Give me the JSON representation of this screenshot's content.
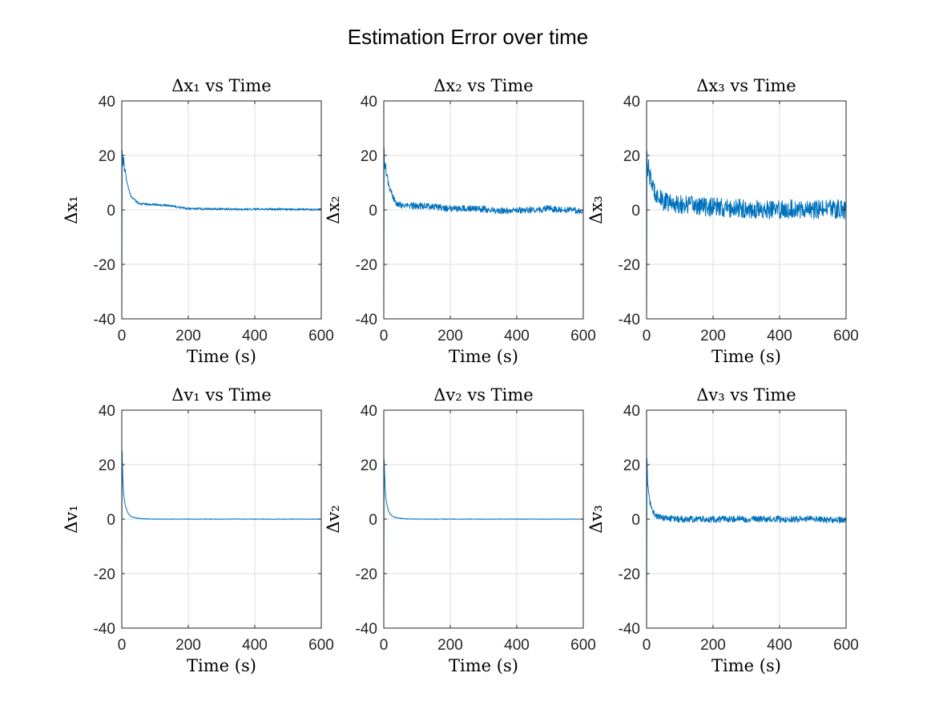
{
  "figure": {
    "title": "Estimation Error over time"
  },
  "colors": {
    "series": "#0072bd",
    "axis": "#262626",
    "grid": "#dfdfdf"
  },
  "chart_data": [
    {
      "type": "line",
      "title": "Δx₁ vs Time",
      "xlabel": "Time (s)",
      "ylabel": "Δx₁",
      "xlim": [
        0,
        600
      ],
      "ylim": [
        -40,
        40
      ],
      "xticks": [
        "0",
        "200",
        "400",
        "600"
      ],
      "yticks": [
        "-40",
        "-20",
        "0",
        "20",
        "40"
      ],
      "grid": true,
      "series": [
        {
          "color": "#0072bd",
          "x": [
            0,
            1,
            2,
            3,
            4,
            6,
            8,
            10,
            13,
            16,
            20,
            25,
            30,
            40,
            50,
            60,
            80,
            100,
            120,
            150,
            180,
            200,
            250,
            300,
            350,
            400,
            450,
            500,
            550,
            600
          ],
          "y": [
            -40,
            22,
            18,
            20,
            16,
            19,
            14,
            15,
            12,
            10,
            8,
            6,
            4.5,
            3.5,
            2.5,
            2.2,
            2,
            2,
            1.8,
            1.5,
            0.8,
            0.5,
            0.4,
            0.3,
            0.2,
            0.2,
            0.3,
            0.2,
            0.2,
            0.1
          ],
          "noise": 0.4
        }
      ]
    },
    {
      "type": "line",
      "title": "Δx₂ vs Time",
      "xlabel": "Time (s)",
      "ylabel": "Δx₂",
      "xlim": [
        0,
        600
      ],
      "ylim": [
        -40,
        40
      ],
      "xticks": [
        "0",
        "200",
        "400",
        "600"
      ],
      "yticks": [
        "-40",
        "-20",
        "0",
        "20",
        "40"
      ],
      "grid": true,
      "series": [
        {
          "color": "#0072bd",
          "x": [
            0,
            1,
            2,
            3,
            4,
            6,
            8,
            10,
            13,
            16,
            20,
            25,
            30,
            40,
            50,
            60,
            80,
            100,
            130,
            160,
            200,
            250,
            300,
            350,
            400,
            450,
            500,
            550,
            600
          ],
          "y": [
            -35,
            23,
            15,
            18,
            14,
            16,
            12,
            13,
            10,
            9,
            7,
            5.5,
            4,
            2.5,
            2,
            1.5,
            1.5,
            1.5,
            1.5,
            1,
            0.5,
            0.5,
            0.3,
            -0.5,
            0,
            0,
            0.5,
            0,
            -0.5
          ],
          "noise": 1.2
        }
      ]
    },
    {
      "type": "line",
      "title": "Δx₃ vs Time",
      "xlabel": "Time (s)",
      "ylabel": "Δx₃",
      "xlim": [
        0,
        600
      ],
      "ylim": [
        -40,
        40
      ],
      "xticks": [
        "0",
        "200",
        "400",
        "600"
      ],
      "yticks": [
        "-40",
        "-20",
        "0",
        "20",
        "40"
      ],
      "grid": true,
      "series": [
        {
          "color": "#0072bd",
          "x": [
            0,
            1,
            2,
            3,
            5,
            8,
            10,
            15,
            20,
            30,
            40,
            50,
            70,
            100,
            150,
            200,
            250,
            300,
            350,
            400,
            450,
            500,
            550,
            600
          ],
          "y": [
            -40,
            22,
            18,
            15,
            16,
            13,
            12,
            10,
            8,
            6,
            4,
            3,
            2.5,
            2,
            1.5,
            1,
            0.5,
            0.5,
            0,
            0,
            0.5,
            0,
            0.5,
            0
          ],
          "noise": 3.5
        }
      ]
    },
    {
      "type": "line",
      "title": "Δv₁ vs Time",
      "xlabel": "Time (s)",
      "ylabel": "Δv₁",
      "xlim": [
        0,
        600
      ],
      "ylim": [
        -40,
        40
      ],
      "xticks": [
        "0",
        "200",
        "400",
        "600"
      ],
      "yticks": [
        "-40",
        "-20",
        "0",
        "20",
        "40"
      ],
      "grid": true,
      "series": [
        {
          "color": "#0072bd",
          "x": [
            0,
            1,
            2,
            3,
            4,
            5,
            6,
            8,
            10,
            13,
            16,
            20,
            25,
            30,
            40,
            50,
            70,
            100,
            200,
            300,
            400,
            500,
            600
          ],
          "y": [
            -20,
            25,
            20,
            16,
            13,
            11,
            9,
            7,
            5.5,
            4,
            3,
            2,
            1.3,
            0.9,
            0.5,
            0.3,
            0.1,
            0,
            0,
            0,
            0,
            0,
            0
          ],
          "noise": 0.1
        }
      ]
    },
    {
      "type": "line",
      "title": "Δv₂ vs Time",
      "xlabel": "Time (s)",
      "ylabel": "Δv₂",
      "xlim": [
        0,
        600
      ],
      "ylim": [
        -40,
        40
      ],
      "xticks": [
        "0",
        "200",
        "400",
        "600"
      ],
      "yticks": [
        "-40",
        "-20",
        "0",
        "20",
        "40"
      ],
      "grid": true,
      "series": [
        {
          "color": "#0072bd",
          "x": [
            0,
            1,
            2,
            3,
            4,
            5,
            6,
            8,
            10,
            13,
            16,
            20,
            25,
            30,
            40,
            50,
            70,
            100,
            200,
            300,
            400,
            500,
            600
          ],
          "y": [
            -35,
            22,
            18,
            15,
            12,
            10,
            8,
            6.5,
            5,
            3.5,
            2.5,
            1.8,
            1.2,
            0.8,
            0.5,
            0.3,
            0.1,
            0,
            0,
            0,
            0,
            0,
            0
          ],
          "noise": 0.1
        }
      ]
    },
    {
      "type": "line",
      "title": "Δv₃ vs Time",
      "xlabel": "Time (s)",
      "ylabel": "Δv₃",
      "xlim": [
        0,
        600
      ],
      "ylim": [
        -40,
        40
      ],
      "xticks": [
        "0",
        "200",
        "400",
        "600"
      ],
      "yticks": [
        "-40",
        "-20",
        "0",
        "20",
        "40"
      ],
      "grid": true,
      "series": [
        {
          "color": "#0072bd",
          "x": [
            0,
            1,
            2,
            3,
            4,
            6,
            8,
            10,
            13,
            16,
            20,
            25,
            30,
            40,
            50,
            70,
            100,
            150,
            200,
            300,
            400,
            500,
            600
          ],
          "y": [
            -40,
            22,
            18,
            15,
            12,
            10,
            8,
            6.5,
            5,
            3.5,
            2.5,
            1.8,
            1.2,
            0.8,
            0.5,
            0.2,
            0,
            0,
            0,
            0,
            0,
            0,
            -0.5
          ],
          "noise": 1.2
        }
      ]
    }
  ]
}
